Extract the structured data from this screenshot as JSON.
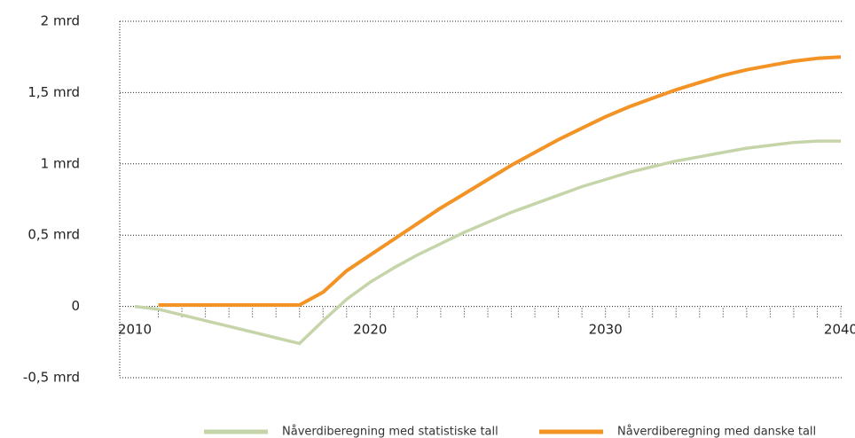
{
  "chart_data": {
    "type": "line",
    "x": [
      2010,
      2011,
      2012,
      2013,
      2014,
      2015,
      2016,
      2017,
      2018,
      2019,
      2020,
      2021,
      2022,
      2023,
      2024,
      2025,
      2026,
      2027,
      2028,
      2029,
      2030,
      2031,
      2032,
      2033,
      2034,
      2035,
      2036,
      2037,
      2038,
      2039,
      2040
    ],
    "series": [
      {
        "name": "Nåverdiberegning med statistiske tall",
        "color": "#c6d5a9",
        "values": [
          0,
          -0.02,
          -0.06,
          -0.1,
          -0.14,
          -0.18,
          -0.22,
          -0.26,
          -0.1,
          0.05,
          0.17,
          0.27,
          0.36,
          0.44,
          0.52,
          0.59,
          0.66,
          0.72,
          0.78,
          0.84,
          0.89,
          0.94,
          0.98,
          1.02,
          1.05,
          1.08,
          1.11,
          1.13,
          1.15,
          1.16,
          1.16
        ]
      },
      {
        "name": "Nåverdiberegning med danske tall",
        "color": "#f39325",
        "values": [
          null,
          0.01,
          0.01,
          0.01,
          0.01,
          0.01,
          0.01,
          0.01,
          0.1,
          0.25,
          0.36,
          0.47,
          0.58,
          0.69,
          0.79,
          0.89,
          0.99,
          1.08,
          1.17,
          1.25,
          1.33,
          1.4,
          1.46,
          1.52,
          1.57,
          1.62,
          1.66,
          1.69,
          1.72,
          1.74,
          1.75
        ]
      }
    ],
    "xlim": [
      2010,
      2040
    ],
    "xticks": [
      2010,
      2020,
      2030,
      2040
    ],
    "ylim": [
      -0.5,
      2
    ],
    "yticks": [
      {
        "value": -0.5,
        "label": "-0,5 mrd"
      },
      0,
      {
        "value": 0.5,
        "label": "0,5 mrd"
      },
      {
        "value": 1,
        "label": "1 mrd"
      },
      {
        "value": 1.5,
        "label": "1,5 mrd"
      },
      {
        "value": 2,
        "label": "2  mrd"
      }
    ],
    "grid": true
  }
}
